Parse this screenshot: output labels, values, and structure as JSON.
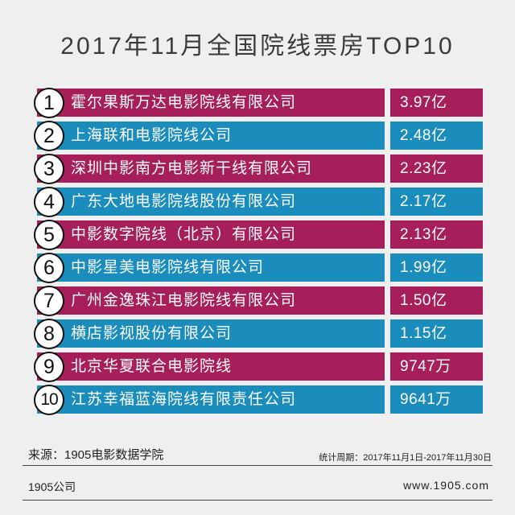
{
  "colors": {
    "background": "#efefef",
    "odd_row": "#a61f5b",
    "even_row": "#1a8dbd"
  },
  "chart_data": {
    "type": "table",
    "title": "2017年11月全国院线票房TOP10",
    "rows": [
      {
        "rank": "1",
        "name": "霍尔果斯万达电影院线有限公司",
        "value": "3.97亿"
      },
      {
        "rank": "2",
        "name": "上海联和电影院线公司",
        "value": "2.48亿"
      },
      {
        "rank": "3",
        "name": "深圳中影南方电影新干线有限公司",
        "value": "2.23亿"
      },
      {
        "rank": "4",
        "name": "广东大地电影院线股份有限公司",
        "value": "2.17亿"
      },
      {
        "rank": "5",
        "name": "中影数字院线（北京）有限公司",
        "value": "2.13亿"
      },
      {
        "rank": "6",
        "name": "中影星美电影院线有限公司",
        "value": "1.99亿"
      },
      {
        "rank": "7",
        "name": "广州金逸珠江电影院线有限公司",
        "value": "1.50亿"
      },
      {
        "rank": "8",
        "name": "横店影视股份有限公司",
        "value": "1.15亿"
      },
      {
        "rank": "9",
        "name": "北京华夏联合电影院线",
        "value": "9747万"
      },
      {
        "rank": "10",
        "name": "江苏幸福蓝海院线有限责任公司",
        "value": "9641万"
      }
    ]
  },
  "footer": {
    "source": "来源：1905电影数据学院",
    "period": "统计周期：2017年11月1日-2017年11月30日",
    "company": "1905公司",
    "website": "www.1905.com"
  }
}
